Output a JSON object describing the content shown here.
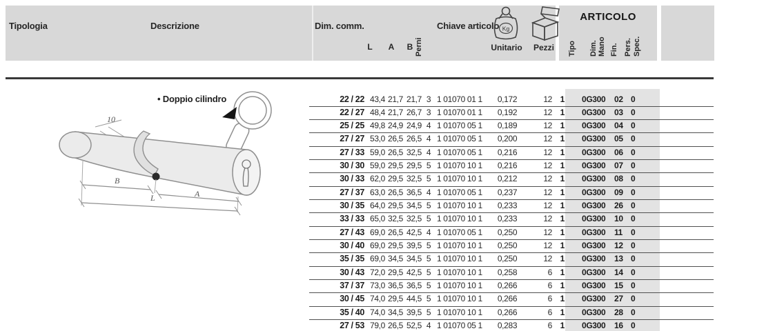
{
  "header": {
    "tipologia": "Tipologia",
    "descrizione": "Descrizione",
    "dim_comm": "Dim. comm.",
    "col_l": "L",
    "col_a": "A",
    "col_b": "B",
    "col_perni": "Perni",
    "chiave_articolo": "Chiave articolo",
    "unitario": "Unitario",
    "pezzi": "Pezzi",
    "kg": "Kg",
    "articolo_title": "ARTICOLO",
    "articolo_cols": {
      "tipo": "Tipo",
      "dim": "Dim.",
      "mano": "Mano",
      "fin": "Fin.",
      "pers": "Pers.",
      "spec": "Spec."
    }
  },
  "description": {
    "bullet": "•",
    "label": "Doppio cilindro"
  },
  "diagram": {
    "dim_10": "10",
    "dim_b": "B",
    "dim_a": "A",
    "dim_l": "L"
  },
  "rows": [
    {
      "size": "22 / 22",
      "l": "43,4",
      "a": "21,7",
      "b": "21,7",
      "perni": "3",
      "chiave": "1 01070 01 1",
      "unitario": "0,172",
      "pezzi": "12",
      "prefix": "1",
      "tipo": "0G300",
      "dim": "02",
      "fin": "0"
    },
    {
      "size": "22 / 27",
      "l": "48,4",
      "a": "21,7",
      "b": "26,7",
      "perni": "3",
      "chiave": "1 01070 01 1",
      "unitario": "0,192",
      "pezzi": "12",
      "prefix": "1",
      "tipo": "0G300",
      "dim": "03",
      "fin": "0"
    },
    {
      "size": "25 / 25",
      "l": "49,8",
      "a": "24,9",
      "b": "24,9",
      "perni": "4",
      "chiave": "1 01070 05 1",
      "unitario": "0,189",
      "pezzi": "12",
      "prefix": "1",
      "tipo": "0G300",
      "dim": "04",
      "fin": "0"
    },
    {
      "size": "27 / 27",
      "l": "53,0",
      "a": "26,5",
      "b": "26,5",
      "perni": "4",
      "chiave": "1 01070 05 1",
      "unitario": "0,200",
      "pezzi": "12",
      "prefix": "1",
      "tipo": "0G300",
      "dim": "05",
      "fin": "0"
    },
    {
      "size": "27 / 33",
      "l": "59,0",
      "a": "26,5",
      "b": "32,5",
      "perni": "4",
      "chiave": "1 01070 05 1",
      "unitario": "0,216",
      "pezzi": "12",
      "prefix": "1",
      "tipo": "0G300",
      "dim": "06",
      "fin": "0"
    },
    {
      "size": "30 / 30",
      "l": "59,0",
      "a": "29,5",
      "b": "29,5",
      "perni": "5",
      "chiave": "1 01070 10 1",
      "unitario": "0,216",
      "pezzi": "12",
      "prefix": "1",
      "tipo": "0G300",
      "dim": "07",
      "fin": "0"
    },
    {
      "size": "30 / 33",
      "l": "62,0",
      "a": "29,5",
      "b": "32,5",
      "perni": "5",
      "chiave": "1 01070 10 1",
      "unitario": "0,212",
      "pezzi": "12",
      "prefix": "1",
      "tipo": "0G300",
      "dim": "08",
      "fin": "0"
    },
    {
      "size": "27 / 37",
      "l": "63,0",
      "a": "26,5",
      "b": "36,5",
      "perni": "4",
      "chiave": "1 01070 05 1",
      "unitario": "0,237",
      "pezzi": "12",
      "prefix": "1",
      "tipo": "0G300",
      "dim": "09",
      "fin": "0"
    },
    {
      "size": "30 / 35",
      "l": "64,0",
      "a": "29,5",
      "b": "34,5",
      "perni": "5",
      "chiave": "1 01070 10 1",
      "unitario": "0,233",
      "pezzi": "12",
      "prefix": "1",
      "tipo": "0G300",
      "dim": "26",
      "fin": "0"
    },
    {
      "size": "33 / 33",
      "l": "65,0",
      "a": "32,5",
      "b": "32,5",
      "perni": "5",
      "chiave": "1 01070 10 1",
      "unitario": "0,233",
      "pezzi": "12",
      "prefix": "1",
      "tipo": "0G300",
      "dim": "10",
      "fin": "0"
    },
    {
      "size": "27 / 43",
      "l": "69,0",
      "a": "26,5",
      "b": "42,5",
      "perni": "4",
      "chiave": "1 01070 05 1",
      "unitario": "0,250",
      "pezzi": "12",
      "prefix": "1",
      "tipo": "0G300",
      "dim": "11",
      "fin": "0"
    },
    {
      "size": "30 / 40",
      "l": "69,0",
      "a": "29,5",
      "b": "39,5",
      "perni": "5",
      "chiave": "1 01070 10 1",
      "unitario": "0,250",
      "pezzi": "12",
      "prefix": "1",
      "tipo": "0G300",
      "dim": "12",
      "fin": "0"
    },
    {
      "size": "35 / 35",
      "l": "69,0",
      "a": "34,5",
      "b": "34,5",
      "perni": "5",
      "chiave": "1 01070 10 1",
      "unitario": "0,250",
      "pezzi": "12",
      "prefix": "1",
      "tipo": "0G300",
      "dim": "13",
      "fin": "0"
    },
    {
      "size": "30 / 43",
      "l": "72,0",
      "a": "29,5",
      "b": "42,5",
      "perni": "5",
      "chiave": "1 01070 10 1",
      "unitario": "0,258",
      "pezzi": "6",
      "prefix": "1",
      "tipo": "0G300",
      "dim": "14",
      "fin": "0"
    },
    {
      "size": "37 / 37",
      "l": "73,0",
      "a": "36,5",
      "b": "36,5",
      "perni": "5",
      "chiave": "1 01070 10 1",
      "unitario": "0,266",
      "pezzi": "6",
      "prefix": "1",
      "tipo": "0G300",
      "dim": "15",
      "fin": "0"
    },
    {
      "size": "30 / 45",
      "l": "74,0",
      "a": "29,5",
      "b": "44,5",
      "perni": "5",
      "chiave": "1 01070 10 1",
      "unitario": "0,266",
      "pezzi": "6",
      "prefix": "1",
      "tipo": "0G300",
      "dim": "27",
      "fin": "0"
    },
    {
      "size": "35 / 40",
      "l": "74,0",
      "a": "34,5",
      "b": "39,5",
      "perni": "5",
      "chiave": "1 01070 10 1",
      "unitario": "0,266",
      "pezzi": "6",
      "prefix": "1",
      "tipo": "0G300",
      "dim": "28",
      "fin": "0"
    },
    {
      "size": "27 / 53",
      "l": "79,0",
      "a": "26,5",
      "b": "52,5",
      "perni": "4",
      "chiave": "1 01070 05 1",
      "unitario": "0,283",
      "pezzi": "6",
      "prefix": "1",
      "tipo": "0G300",
      "dim": "16",
      "fin": "0"
    }
  ],
  "colors": {
    "header_band": "#d8d8d8",
    "article_band": "#e3e3e3",
    "rule": "#4f4f4f",
    "text": "#1f1f1f"
  }
}
